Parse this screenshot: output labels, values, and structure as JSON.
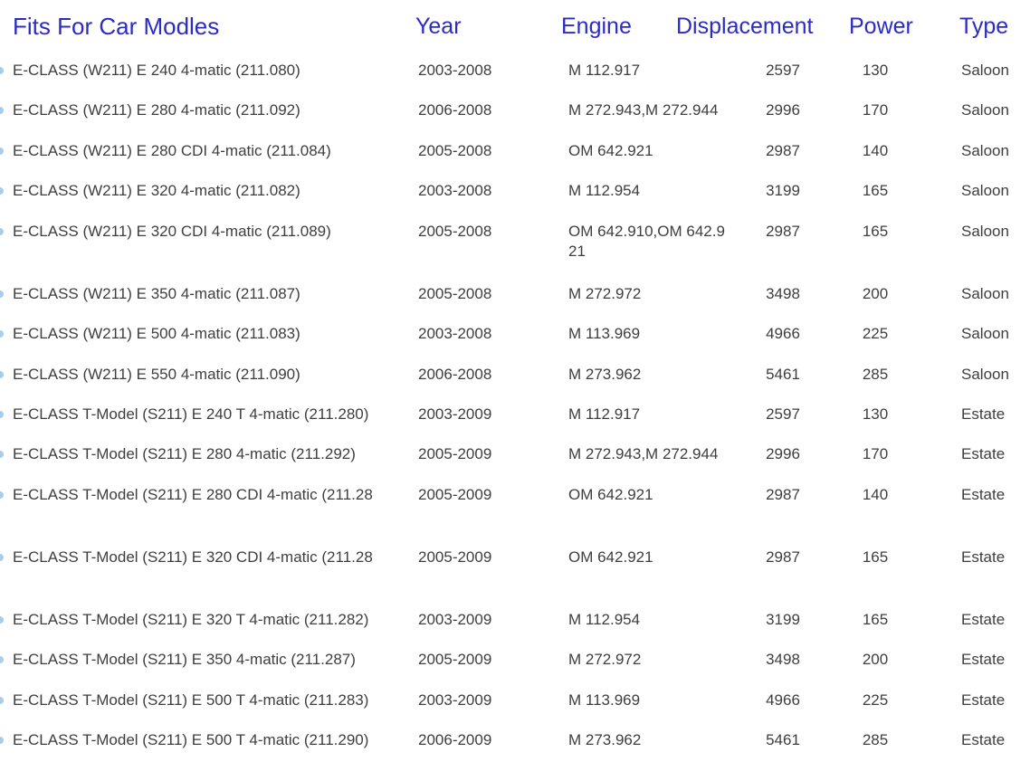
{
  "colors": {
    "header_text": "#2c2cc4",
    "body_text": "#3e3e3e",
    "bullet": "#a9cde9",
    "background": "#ffffff"
  },
  "table": {
    "headers": {
      "model": "Fits For Car Modles",
      "year": "Year",
      "engine": "Engine",
      "displacement": "Displacement",
      "power": "Power",
      "type": "Type"
    },
    "rows": [
      {
        "model": "E-CLASS (W211) E 240 4-matic (211.080)",
        "year": "2003-2008",
        "engine": "M 112.917",
        "displacement": "2597",
        "power": "130",
        "type": "Saloon"
      },
      {
        "model": "E-CLASS (W211) E 280 4-matic (211.092)",
        "year": "2006-2008",
        "engine": "M 272.943,M 272.944",
        "displacement": "2996",
        "power": "170",
        "type": "Saloon"
      },
      {
        "model": "E-CLASS (W211) E 280 CDI 4-matic (211.084)",
        "year": "2005-2008",
        "engine": "OM 642.921",
        "displacement": "2987",
        "power": "140",
        "type": "Saloon"
      },
      {
        "model": "E-CLASS (W211) E 320 4-matic (211.082)",
        "year": "2003-2008",
        "engine": "M 112.954",
        "displacement": "3199",
        "power": "165",
        "type": "Saloon"
      },
      {
        "model": "E-CLASS (W211) E 320 CDI 4-matic (211.089)",
        "year": "2005-2008",
        "engine": "OM 642.910,OM 642.921",
        "displacement": "2987",
        "power": "165",
        "type": "Saloon"
      },
      {
        "model": "E-CLASS (W211) E 350 4-matic (211.087)",
        "year": "2005-2008",
        "engine": "M 272.972",
        "displacement": "3498",
        "power": "200",
        "type": "Saloon"
      },
      {
        "model": "E-CLASS (W211) E 500 4-matic (211.083)",
        "year": "2003-2008",
        "engine": "M 113.969",
        "displacement": "4966",
        "power": "225",
        "type": "Saloon"
      },
      {
        "model": "E-CLASS (W211) E 550 4-matic (211.090)",
        "year": "2006-2008",
        "engine": "M 273.962",
        "displacement": "5461",
        "power": "285",
        "type": "Saloon"
      },
      {
        "model": "E-CLASS T-Model (S211) E 240 T 4-matic (211.280)",
        "year": "2003-2009",
        "engine": "M 112.917",
        "displacement": "2597",
        "power": "130",
        "type": "Estate"
      },
      {
        "model": "E-CLASS T-Model (S211) E 280 4-matic (211.292)",
        "year": "2005-2009",
        "engine": "M 272.943,M 272.944",
        "displacement": "2996",
        "power": "170",
        "type": "Estate"
      },
      {
        "model": "E-CLASS T-Model (S211) E 280 CDI 4-matic (211.28",
        "year": "2005-2009",
        "engine": "OM 642.921",
        "displacement": "2987",
        "power": "140",
        "type": "Estate"
      },
      {
        "model": "E-CLASS T-Model (S211) E 320 CDI 4-matic (211.28",
        "year": "2005-2009",
        "engine": "OM 642.921",
        "displacement": "2987",
        "power": "165",
        "type": "Estate"
      },
      {
        "model": "E-CLASS T-Model (S211) E 320 T 4-matic (211.282)",
        "year": "2003-2009",
        "engine": "M 112.954",
        "displacement": "3199",
        "power": "165",
        "type": "Estate"
      },
      {
        "model": "E-CLASS T-Model (S211) E 350 4-matic (211.287)",
        "year": "2005-2009",
        "engine": "M 272.972",
        "displacement": "3498",
        "power": "200",
        "type": "Estate"
      },
      {
        "model": "E-CLASS T-Model (S211) E 500 T 4-matic (211.283)",
        "year": "2003-2009",
        "engine": "M 113.969",
        "displacement": "4966",
        "power": "225",
        "type": "Estate"
      },
      {
        "model": "E-CLASS T-Model (S211) E 500 T 4-matic (211.290)",
        "year": "2006-2009",
        "engine": "M 273.962",
        "displacement": "5461",
        "power": "285",
        "type": "Estate"
      }
    ]
  }
}
